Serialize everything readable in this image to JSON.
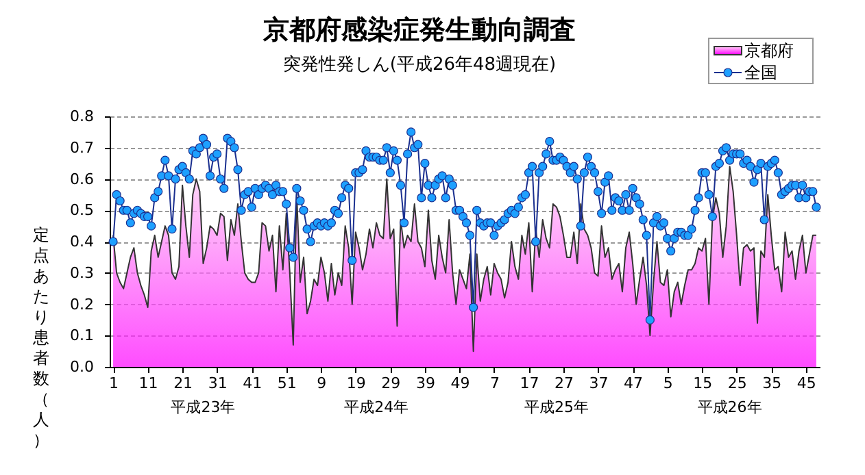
{
  "chart_data": {
    "type": "line",
    "title": "京都府感染症発生動向調査",
    "subtitle": "突発性発しん(平成26年48週現在)",
    "ylabel": "定点あたり患者数（人）",
    "annotations": [
      "平成23年",
      "平成24年",
      "平成25年",
      "平成26年"
    ],
    "categories": [
      "1",
      null,
      null,
      null,
      null,
      null,
      null,
      null,
      null,
      null,
      "11",
      null,
      null,
      null,
      null,
      null,
      null,
      null,
      null,
      null,
      "21",
      null,
      null,
      null,
      null,
      null,
      null,
      null,
      null,
      null,
      "31",
      null,
      null,
      null,
      null,
      null,
      null,
      null,
      null,
      null,
      "41",
      null,
      null,
      null,
      null,
      null,
      null,
      null,
      null,
      null,
      "51",
      null,
      null,
      null,
      null,
      null,
      null,
      null,
      null,
      null,
      "9",
      null,
      null,
      null,
      null,
      null,
      null,
      null,
      null,
      null,
      "19",
      null,
      null,
      null,
      null,
      null,
      null,
      null,
      null,
      null,
      "29",
      null,
      null,
      null,
      null,
      null,
      null,
      null,
      null,
      null,
      "39",
      null,
      null,
      null,
      null,
      null,
      null,
      null,
      null,
      null,
      "49",
      null,
      null,
      null,
      null,
      null,
      null,
      null,
      null,
      null,
      "7",
      null,
      null,
      null,
      null,
      null,
      null,
      null,
      null,
      null,
      "17",
      null,
      null,
      null,
      null,
      null,
      null,
      null,
      null,
      null,
      "27",
      null,
      null,
      null,
      null,
      null,
      null,
      null,
      null,
      null,
      "37",
      null,
      null,
      null,
      null,
      null,
      null,
      null,
      null,
      null,
      "47",
      null,
      null,
      null,
      null,
      null,
      null,
      null,
      null,
      null,
      "5",
      null,
      null,
      null,
      null,
      null,
      null,
      null,
      null,
      null,
      "15",
      null,
      null,
      null,
      null,
      null,
      null,
      null,
      null,
      null,
      "25",
      null,
      null,
      null,
      null,
      null,
      null,
      null,
      null,
      null,
      "35",
      null,
      null,
      null,
      null,
      null,
      null,
      null,
      null,
      null,
      "45",
      null,
      null,
      null
    ],
    "ylim": [
      0,
      0.8
    ],
    "yticks": [
      {
        "value": 0,
        "label": "0.0"
      },
      0.1,
      0.2,
      0.3,
      0.4,
      0.5,
      0.6,
      0.7,
      0.8
    ],
    "grid": "y",
    "legend": "top right",
    "series": [
      {
        "name": "京都府",
        "type": "area",
        "color": "#ff00ff",
        "values": [
          0.42,
          0.3,
          0.27,
          0.25,
          0.3,
          0.35,
          0.38,
          0.3,
          0.26,
          0.23,
          0.19,
          0.37,
          0.42,
          0.35,
          0.4,
          0.45,
          0.42,
          0.3,
          0.28,
          0.32,
          0.58,
          0.45,
          0.35,
          0.55,
          0.6,
          0.56,
          0.33,
          0.38,
          0.45,
          0.44,
          0.42,
          0.49,
          0.48,
          0.34,
          0.47,
          0.42,
          0.52,
          0.4,
          0.3,
          0.28,
          0.27,
          0.27,
          0.3,
          0.46,
          0.45,
          0.37,
          0.42,
          0.24,
          0.45,
          0.31,
          0.49,
          0.3,
          0.07,
          0.55,
          0.27,
          0.35,
          0.17,
          0.21,
          0.28,
          0.26,
          0.35,
          0.3,
          0.21,
          0.33,
          0.23,
          0.3,
          0.26,
          0.45,
          0.38,
          0.2,
          0.43,
          0.38,
          0.31,
          0.36,
          0.44,
          0.38,
          0.46,
          0.42,
          0.41,
          0.6,
          0.41,
          0.44,
          0.13,
          0.47,
          0.38,
          0.42,
          0.4,
          0.52,
          0.4,
          0.38,
          0.32,
          0.5,
          0.34,
          0.28,
          0.42,
          0.35,
          0.3,
          0.47,
          0.3,
          0.2,
          0.31,
          0.28,
          0.25,
          0.36,
          0.05,
          0.36,
          0.21,
          0.28,
          0.32,
          0.23,
          0.33,
          0.3,
          0.28,
          0.22,
          0.27,
          0.4,
          0.32,
          0.28,
          0.42,
          0.36,
          0.46,
          0.24,
          0.44,
          0.35,
          0.47,
          0.41,
          0.38,
          0.52,
          0.51,
          0.48,
          0.42,
          0.35,
          0.35,
          0.43,
          0.33,
          0.52,
          0.44,
          0.42,
          0.38,
          0.3,
          0.29,
          0.45,
          0.35,
          0.38,
          0.28,
          0.31,
          0.33,
          0.24,
          0.38,
          0.43,
          0.33,
          0.2,
          0.28,
          0.35,
          0.26,
          0.1,
          0.27,
          0.4,
          0.27,
          0.26,
          0.31,
          0.16,
          0.24,
          0.27,
          0.2,
          0.26,
          0.31,
          0.31,
          0.33,
          0.38,
          0.37,
          0.41,
          0.2,
          0.47,
          0.54,
          0.49,
          0.35,
          0.45,
          0.64,
          0.56,
          0.42,
          0.26,
          0.38,
          0.39,
          0.37,
          0.38,
          0.14,
          0.37,
          0.35,
          0.55,
          0.42,
          0.31,
          0.32,
          0.24,
          0.43,
          0.35,
          0.37,
          0.28,
          0.37,
          0.42,
          0.3,
          0.36,
          0.42,
          0.42
        ]
      },
      {
        "name": "全国",
        "color": "#1ea0ff",
        "marker": "circle",
        "values": [
          0.4,
          0.55,
          0.53,
          0.5,
          0.5,
          0.46,
          0.49,
          0.5,
          0.49,
          0.48,
          0.48,
          0.45,
          0.54,
          0.56,
          0.61,
          0.66,
          0.61,
          0.44,
          0.6,
          0.63,
          0.64,
          0.62,
          0.6,
          0.69,
          0.68,
          0.7,
          0.73,
          0.71,
          0.61,
          0.67,
          0.68,
          0.6,
          0.57,
          0.73,
          0.72,
          0.7,
          0.63,
          0.5,
          0.55,
          0.56,
          0.51,
          0.57,
          0.55,
          0.57,
          0.58,
          0.57,
          0.55,
          0.58,
          0.56,
          0.56,
          0.52,
          0.38,
          0.35,
          0.57,
          0.53,
          0.5,
          0.44,
          0.4,
          0.45,
          0.46,
          0.45,
          0.46,
          0.45,
          0.46,
          0.5,
          0.49,
          0.54,
          0.58,
          0.57,
          0.34,
          0.62,
          0.62,
          0.63,
          0.69,
          0.67,
          0.67,
          0.67,
          0.66,
          0.66,
          0.7,
          0.62,
          0.69,
          0.66,
          0.58,
          0.46,
          0.68,
          0.75,
          0.7,
          0.71,
          0.54,
          0.65,
          0.58,
          0.54,
          0.58,
          0.6,
          0.61,
          0.54,
          0.6,
          0.58,
          0.5,
          0.5,
          0.48,
          0.46,
          0.42,
          0.19,
          0.5,
          0.46,
          0.45,
          0.46,
          0.46,
          0.42,
          0.45,
          0.46,
          0.47,
          0.49,
          0.5,
          0.49,
          0.51,
          0.54,
          0.55,
          0.62,
          0.64,
          0.4,
          0.62,
          0.64,
          0.68,
          0.72,
          0.66,
          0.66,
          0.67,
          0.66,
          0.64,
          0.62,
          0.64,
          0.6,
          0.45,
          0.62,
          0.67,
          0.64,
          0.62,
          0.56,
          0.49,
          0.59,
          0.61,
          0.5,
          0.54,
          0.53,
          0.5,
          0.55,
          0.5,
          0.57,
          0.54,
          0.52,
          0.47,
          0.42,
          0.15,
          0.46,
          0.48,
          0.45,
          0.46,
          0.41,
          0.37,
          0.41,
          0.43,
          0.43,
          0.42,
          0.42,
          0.44,
          0.5,
          0.54,
          0.62,
          0.62,
          0.55,
          0.48,
          0.64,
          0.65,
          0.69,
          0.7,
          0.66,
          0.68,
          0.68,
          0.68,
          0.65,
          0.66,
          0.64,
          0.59,
          0.63,
          0.65,
          0.47,
          0.64,
          0.65,
          0.66,
          0.62,
          0.55,
          0.56,
          0.57,
          0.58,
          0.58,
          0.54,
          0.58,
          0.54,
          0.56,
          0.56,
          0.51
        ]
      }
    ]
  }
}
